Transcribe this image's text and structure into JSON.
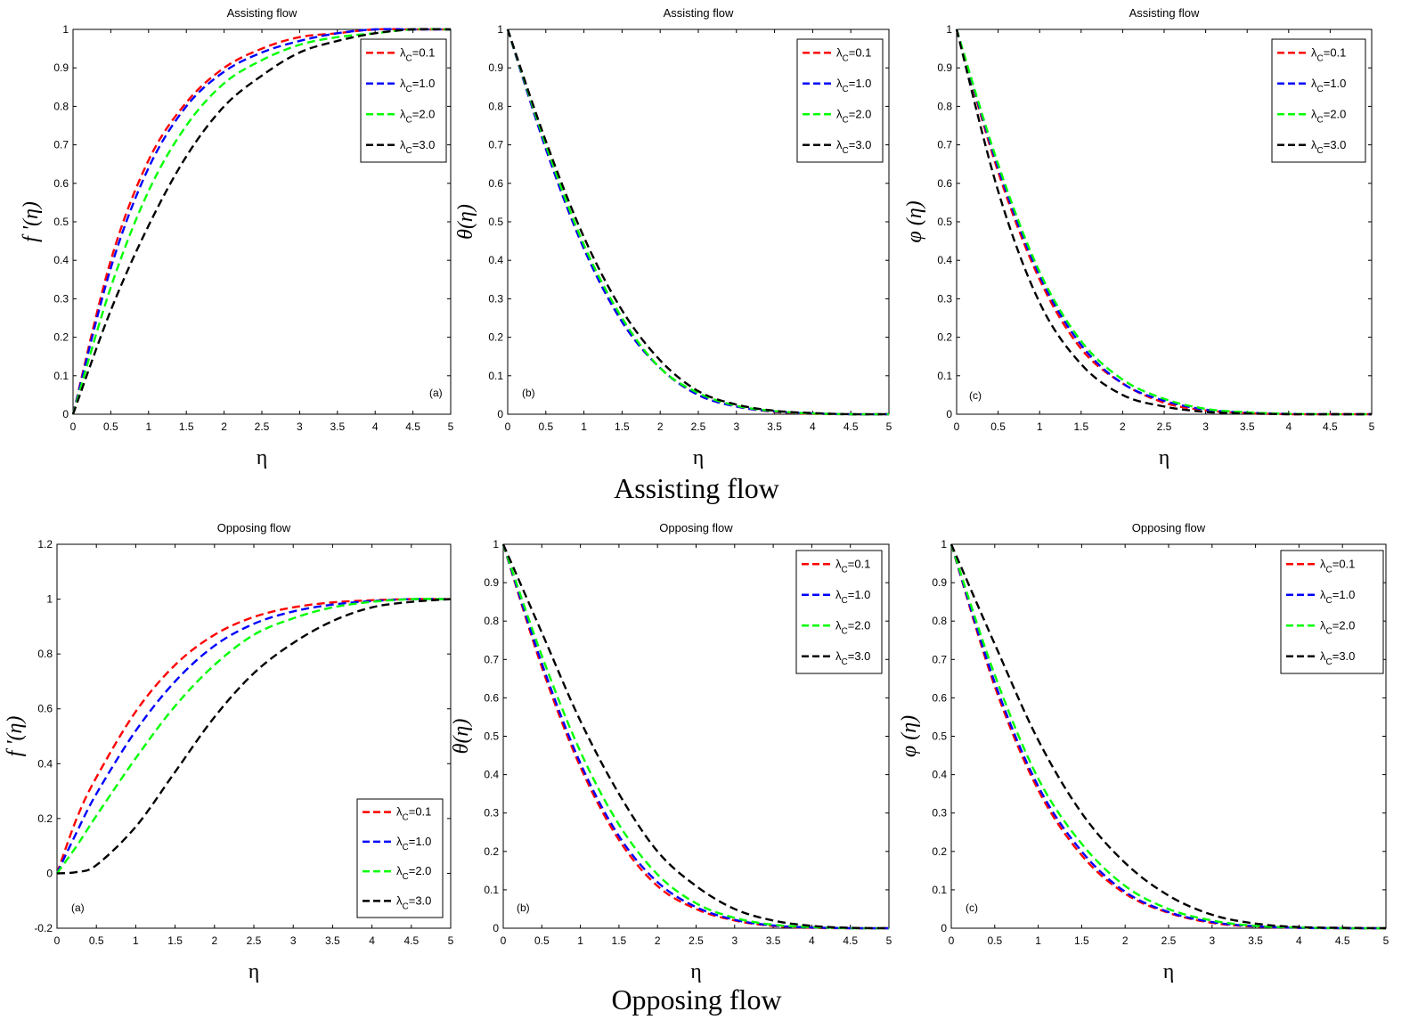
{
  "figure": {
    "captions": {
      "assisting": "Assisting flow",
      "opposing": "Opposing flow"
    },
    "legend_labels": [
      "λC=0.1",
      "λC=1.0",
      "λC=2.0",
      "λC=3.0"
    ],
    "series_colors": [
      "#ff0000",
      "#0000ff",
      "#00ff00",
      "#000000"
    ]
  },
  "chart_data": [
    {
      "id": "assist-a",
      "type": "line",
      "title": "Assisting flow",
      "panel_label": "(a)",
      "xlabel": "η",
      "ylabel": "f '(η)",
      "xlim": [
        0,
        5
      ],
      "ylim": [
        0,
        1
      ],
      "xticks": [
        "0",
        "0.5",
        "1",
        "1.5",
        "2",
        "2.5",
        "3",
        "3.5",
        "4",
        "4.5",
        "5"
      ],
      "yticks": [
        "0",
        "0.1",
        "0.2",
        "0.3",
        "0.4",
        "0.5",
        "0.6",
        "0.7",
        "0.8",
        "0.9",
        "1"
      ],
      "legend_position": "top-right",
      "x": [
        0,
        0.5,
        1,
        1.5,
        2,
        2.5,
        3,
        3.5,
        4,
        4.5,
        5
      ],
      "series": [
        {
          "name": "λC=0.1",
          "values": [
            0,
            0.4,
            0.66,
            0.81,
            0.9,
            0.95,
            0.98,
            0.99,
            1,
            1,
            1
          ]
        },
        {
          "name": "λC=1.0",
          "values": [
            0,
            0.38,
            0.64,
            0.8,
            0.89,
            0.94,
            0.97,
            0.99,
            1,
            1,
            1
          ]
        },
        {
          "name": "λC=2.0",
          "values": [
            0,
            0.33,
            0.58,
            0.75,
            0.86,
            0.92,
            0.96,
            0.98,
            0.99,
            1,
            1
          ]
        },
        {
          "name": "λC=3.0",
          "values": [
            0,
            0.27,
            0.49,
            0.67,
            0.8,
            0.88,
            0.94,
            0.97,
            0.99,
            1,
            1
          ]
        }
      ]
    },
    {
      "id": "assist-b",
      "type": "line",
      "title": "Assisting flow",
      "panel_label": "(b)",
      "xlabel": "η",
      "ylabel": "θ(η)",
      "xlim": [
        0,
        5
      ],
      "ylim": [
        0,
        1
      ],
      "xticks": [
        "0",
        "0.5",
        "1",
        "1.5",
        "2",
        "2.5",
        "3",
        "3.5",
        "4",
        "4.5",
        "5"
      ],
      "yticks": [
        "0",
        "0.1",
        "0.2",
        "0.3",
        "0.4",
        "0.5",
        "0.6",
        "0.7",
        "0.8",
        "0.9",
        "1"
      ],
      "legend_position": "top-right",
      "x": [
        0,
        0.5,
        1,
        1.5,
        2,
        2.5,
        3,
        3.5,
        4,
        4.5,
        5
      ],
      "series": [
        {
          "name": "λC=0.1",
          "values": [
            1,
            0.69,
            0.43,
            0.24,
            0.12,
            0.05,
            0.02,
            0.006,
            0.001,
            0,
            0
          ]
        },
        {
          "name": "λC=1.0",
          "values": [
            1,
            0.69,
            0.43,
            0.24,
            0.12,
            0.05,
            0.02,
            0.007,
            0.002,
            0,
            0
          ]
        },
        {
          "name": "λC=2.0",
          "values": [
            1,
            0.7,
            0.44,
            0.25,
            0.12,
            0.055,
            0.022,
            0.008,
            0.002,
            0,
            0
          ]
        },
        {
          "name": "λC=3.0",
          "values": [
            1,
            0.71,
            0.46,
            0.27,
            0.14,
            0.06,
            0.025,
            0.009,
            0.003,
            0,
            0
          ]
        }
      ]
    },
    {
      "id": "assist-c",
      "type": "line",
      "title": "Assisting flow",
      "panel_label": "(c)",
      "xlabel": "η",
      "ylabel": "φ (η)",
      "xlim": [
        0,
        5
      ],
      "ylim": [
        0,
        1
      ],
      "xticks": [
        "0",
        "0.5",
        "1",
        "1.5",
        "2",
        "2.5",
        "3",
        "3.5",
        "4",
        "4.5",
        "5"
      ],
      "yticks": [
        "0",
        "0.1",
        "0.2",
        "0.3",
        "0.4",
        "0.5",
        "0.6",
        "0.7",
        "0.8",
        "0.9",
        "1"
      ],
      "legend_position": "top-right",
      "x": [
        0,
        0.5,
        1,
        1.5,
        2,
        2.5,
        3,
        3.5,
        4,
        4.5,
        5
      ],
      "series": [
        {
          "name": "λC=0.1",
          "values": [
            1,
            0.63,
            0.35,
            0.17,
            0.08,
            0.03,
            0.01,
            0.003,
            0,
            0,
            0
          ]
        },
        {
          "name": "λC=1.0",
          "values": [
            1,
            0.64,
            0.36,
            0.18,
            0.08,
            0.035,
            0.012,
            0.004,
            0.001,
            0,
            0
          ]
        },
        {
          "name": "λC=2.0",
          "values": [
            1,
            0.65,
            0.37,
            0.19,
            0.09,
            0.04,
            0.014,
            0.005,
            0.001,
            0,
            0
          ]
        },
        {
          "name": "λC=3.0",
          "values": [
            1,
            0.58,
            0.29,
            0.13,
            0.05,
            0.02,
            0.006,
            0.002,
            0,
            0,
            0
          ]
        }
      ]
    },
    {
      "id": "oppose-a",
      "type": "line",
      "title": "Opposing flow",
      "panel_label": "(a)",
      "xlabel": "η",
      "ylabel": "f '(η)",
      "xlim": [
        0,
        5
      ],
      "ylim": [
        -0.2,
        1.2
      ],
      "xticks": [
        "0",
        "0.5",
        "1",
        "1.5",
        "2",
        "2.5",
        "3",
        "3.5",
        "4",
        "4.5",
        "5"
      ],
      "yticks": [
        "-0.2",
        "0",
        "0.2",
        "0.4",
        "0.6",
        "0.8",
        "1",
        "1.2"
      ],
      "legend_position": "bottom-right",
      "x": [
        0,
        0.25,
        0.5,
        1,
        1.5,
        2,
        2.5,
        3,
        3.5,
        4,
        4.5,
        5
      ],
      "series": [
        {
          "name": "λC=0.1",
          "values": [
            0,
            0.2,
            0.35,
            0.59,
            0.76,
            0.87,
            0.935,
            0.97,
            0.988,
            0.996,
            1,
            1
          ]
        },
        {
          "name": "λC=1.0",
          "values": [
            0,
            0.15,
            0.29,
            0.52,
            0.7,
            0.83,
            0.91,
            0.955,
            0.98,
            0.993,
            1,
            1
          ]
        },
        {
          "name": "λC=2.0",
          "values": [
            0,
            0.1,
            0.21,
            0.42,
            0.61,
            0.76,
            0.87,
            0.93,
            0.97,
            0.99,
            1,
            1
          ]
        },
        {
          "name": "λC=3.0",
          "values": [
            0,
            0.005,
            0.03,
            0.17,
            0.37,
            0.57,
            0.73,
            0.84,
            0.92,
            0.97,
            0.99,
            1
          ]
        }
      ]
    },
    {
      "id": "oppose-b",
      "type": "line",
      "title": "Opposing flow",
      "panel_label": "(b)",
      "xlabel": "η",
      "ylabel": "θ(η)",
      "xlim": [
        0,
        5
      ],
      "ylim": [
        0,
        1
      ],
      "xticks": [
        "0",
        "0.5",
        "1",
        "1.5",
        "2",
        "2.5",
        "3",
        "3.5",
        "4",
        "4.5",
        "5"
      ],
      "yticks": [
        "0",
        "0.1",
        "0.2",
        "0.3",
        "0.4",
        "0.5",
        "0.6",
        "0.7",
        "0.8",
        "0.9",
        "1"
      ],
      "legend_position": "top-right",
      "x": [
        0,
        0.5,
        1,
        1.5,
        2,
        2.5,
        3,
        3.5,
        4,
        4.5,
        5
      ],
      "series": [
        {
          "name": "λC=0.1",
          "values": [
            1,
            0.68,
            0.42,
            0.23,
            0.11,
            0.05,
            0.02,
            0.006,
            0.001,
            0,
            0
          ]
        },
        {
          "name": "λC=1.0",
          "values": [
            1,
            0.69,
            0.43,
            0.24,
            0.12,
            0.055,
            0.022,
            0.007,
            0.002,
            0,
            0
          ]
        },
        {
          "name": "λC=2.0",
          "values": [
            1,
            0.71,
            0.46,
            0.27,
            0.14,
            0.065,
            0.027,
            0.009,
            0.003,
            0,
            0
          ]
        },
        {
          "name": "λC=3.0",
          "values": [
            1,
            0.77,
            0.54,
            0.35,
            0.2,
            0.11,
            0.05,
            0.02,
            0.006,
            0.001,
            0
          ]
        }
      ]
    },
    {
      "id": "oppose-c",
      "type": "line",
      "title": "Opposing flow",
      "panel_label": "(c)",
      "xlabel": "η",
      "ylabel": "φ (η)",
      "xlim": [
        0,
        5
      ],
      "ylim": [
        0,
        1
      ],
      "xticks": [
        "0",
        "0.5",
        "1",
        "1.5",
        "2",
        "2.5",
        "3",
        "3.5",
        "4",
        "4.5",
        "5"
      ],
      "yticks": [
        "0",
        "0.1",
        "0.2",
        "0.3",
        "0.4",
        "0.5",
        "0.6",
        "0.7",
        "0.8",
        "0.9",
        "1"
      ],
      "legend_position": "top-right",
      "x": [
        0,
        0.5,
        1,
        1.5,
        2,
        2.5,
        3,
        3.5,
        4,
        4.5,
        5
      ],
      "series": [
        {
          "name": "λC=0.1",
          "values": [
            1,
            0.63,
            0.36,
            0.19,
            0.09,
            0.04,
            0.014,
            0.004,
            0.001,
            0,
            0
          ]
        },
        {
          "name": "λC=1.0",
          "values": [
            1,
            0.64,
            0.37,
            0.2,
            0.095,
            0.042,
            0.016,
            0.005,
            0.001,
            0,
            0
          ]
        },
        {
          "name": "λC=2.0",
          "values": [
            1,
            0.66,
            0.39,
            0.22,
            0.11,
            0.05,
            0.02,
            0.006,
            0.002,
            0,
            0
          ]
        },
        {
          "name": "λC=3.0",
          "values": [
            1,
            0.74,
            0.49,
            0.3,
            0.17,
            0.085,
            0.035,
            0.012,
            0.003,
            0.001,
            0
          ]
        }
      ]
    }
  ]
}
